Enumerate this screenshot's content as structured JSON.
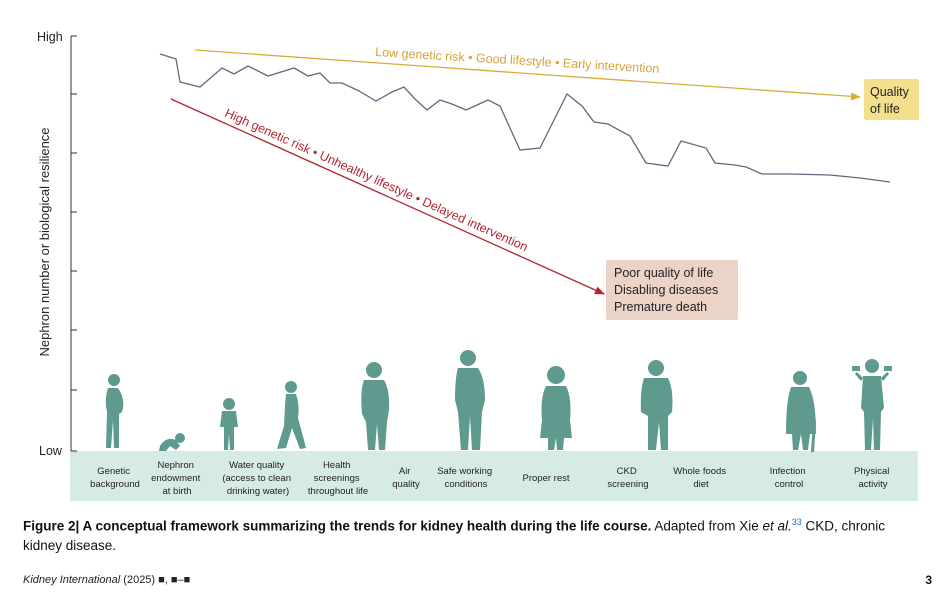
{
  "diagram": {
    "y_axis": {
      "label": "Nephron number or biological resilience",
      "high": "High",
      "low": "Low"
    },
    "good_path_label": "Low genetic risk • Good lifestyle • Early intervention",
    "bad_path_label": "High genetic risk • Unhealthy lifestyle • Delayed intervention",
    "good_outcome": [
      "Quality",
      "of life"
    ],
    "bad_outcome": [
      "Poor quality of life",
      "Disabling diseases",
      "Premature death"
    ],
    "stages": [
      [
        "Genetic",
        "background"
      ],
      [
        "Nephron",
        "endowment",
        "at birth"
      ],
      [
        "Water quality",
        "(access to clean",
        "drinking water)"
      ],
      [
        "Health",
        "screenings",
        "throughout life"
      ],
      [
        "Air",
        "quality"
      ],
      [
        "Safe working",
        "conditions"
      ],
      [
        "Proper rest"
      ],
      [
        "CKD",
        "screening"
      ],
      [
        "Whole foods",
        "diet"
      ],
      [
        "Infection",
        "control"
      ],
      [
        "Physical",
        "activity"
      ]
    ],
    "colors": {
      "good": "#d8ac3a",
      "bad": "#b0252f",
      "trend": "#6f6380",
      "figures": "#5e9a8e",
      "band": "#d7ebe6",
      "good_box": "#f4df8c",
      "bad_box": "#ecd3c8"
    }
  },
  "caption": {
    "label": "Figure 2",
    "separator": "|",
    "title": " A conceptual framework summarizing the trends for kidney health during the life course.",
    "text1": " Adapted from Xie ",
    "et_al": "et al.",
    "ref": "33",
    "text2": " CKD, chronic kidney disease."
  },
  "footer": {
    "journal": "Kidney International",
    "issue": " (2025) ■, ■–■",
    "page": "3"
  }
}
